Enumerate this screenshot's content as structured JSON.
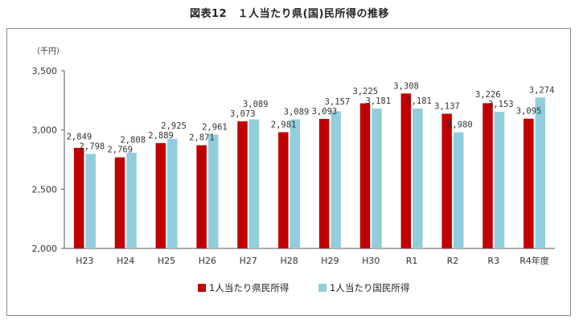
{
  "figure": {
    "title": "図表12　１人当たり県(国)民所得の推移"
  },
  "chart_data": {
    "type": "bar",
    "unit_label": "（千円）",
    "categories": [
      "H23",
      "H24",
      "H25",
      "H26",
      "H27",
      "H28",
      "H29",
      "H30",
      "R1",
      "R2",
      "R3",
      "R4年度"
    ],
    "series": [
      {
        "name": "1人当たり県民所得",
        "color": "#c00000",
        "values": [
          2849,
          2769,
          2889,
          2871,
          3073,
          2981,
          3093,
          3225,
          3308,
          3137,
          3226,
          3095
        ],
        "labels": [
          "2,849",
          "2,769",
          "2,889",
          "2,871",
          "3,073",
          "2,981",
          "3,093",
          "3,225",
          "3,308",
          "3,137",
          "3,226",
          "3,095"
        ]
      },
      {
        "name": "1人当たり国民所得",
        "color": "#92cddc",
        "values": [
          2798,
          2808,
          2925,
          2961,
          3089,
          3089,
          3157,
          3181,
          3181,
          2980,
          3153,
          3274
        ],
        "labels": [
          "2,798",
          "2,808",
          "2,925",
          "2,961",
          "3,089",
          "3,089",
          "3,157",
          "3,181",
          "3,181",
          "2,980",
          "3,153",
          "3,274"
        ]
      }
    ],
    "ylim": [
      2000,
      3500
    ],
    "yticks": [
      2000,
      2500,
      3000,
      3500
    ],
    "ytick_labels": [
      "2,000",
      "2,500",
      "3,000",
      "3,500"
    ],
    "grid": false,
    "legend_position": "bottom"
  }
}
